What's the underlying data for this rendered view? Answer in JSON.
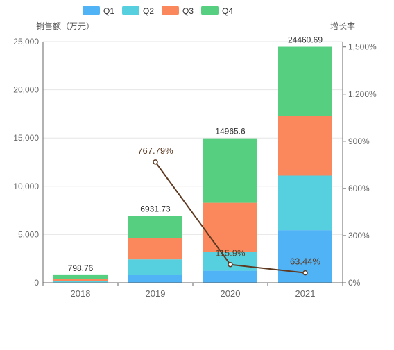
{
  "chart_data": {
    "type": "bar",
    "stacked": true,
    "categories": [
      "2018",
      "2019",
      "2020",
      "2021"
    ],
    "series": [
      {
        "name": "Q1",
        "color": "#4fb3f5",
        "values": [
          50,
          790,
          1250,
          5450
        ]
      },
      {
        "name": "Q2",
        "color": "#56cfdf",
        "values": [
          100,
          1640,
          1950,
          5650
        ]
      },
      {
        "name": "Q3",
        "color": "#fb885c",
        "values": [
          230,
          2170,
          5090,
          6200
        ]
      },
      {
        "name": "Q4",
        "color": "#56cf80",
        "values": [
          418.76,
          2331.73,
          6675.6,
          7160.69
        ]
      }
    ],
    "totals": [
      798.76,
      6931.73,
      14965.6,
      24460.69
    ],
    "total_labels": [
      "798.76",
      "6931.73",
      "14965.6",
      "24460.69"
    ],
    "growth_line": {
      "color": "#5e3a22",
      "x": [
        "2019",
        "2020",
        "2021"
      ],
      "values": [
        767.79,
        115.9,
        63.44
      ],
      "labels": [
        "767.79%",
        "115.9%",
        "63.44%"
      ]
    },
    "y_left": {
      "label": "销售额（万元）",
      "min": 0,
      "max": 25000,
      "ticks": [
        0,
        5000,
        10000,
        15000,
        20000,
        25000
      ],
      "tick_labels": [
        "0",
        "5,000",
        "10,000",
        "15,000",
        "20,000",
        "25,000"
      ]
    },
    "y_right": {
      "label": "增长率",
      "min": 0,
      "max": 1534,
      "ticks": [
        0,
        300,
        600,
        900,
        1200,
        1500
      ],
      "tick_labels": [
        "0%",
        "300%",
        "600%",
        "900%",
        "1,200%",
        "1,500%"
      ]
    },
    "legend_position": "top",
    "grid": true
  }
}
